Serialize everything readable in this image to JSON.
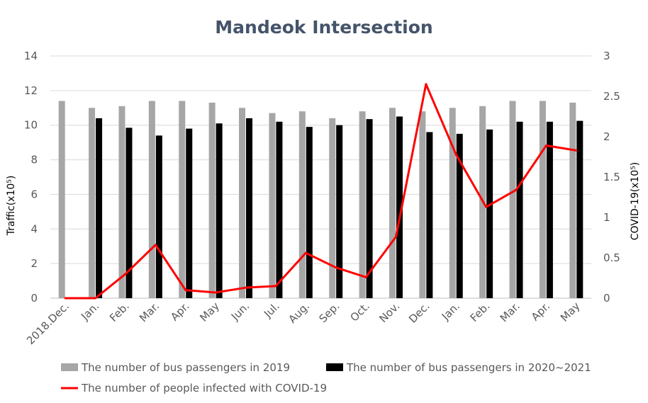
{
  "chart_data": {
    "type": "bar",
    "title": "Mandeok Intersection",
    "categories": [
      "2018.Dec.",
      "Jan.",
      "Feb.",
      "Mar.",
      "Apr.",
      "May",
      "Jun.",
      "Jul.",
      "Aug.",
      "Sep.",
      "Oct.",
      "Nov.",
      "Dec.",
      "Jan.",
      "Feb.",
      "Mar.",
      "Apr.",
      "May"
    ],
    "ylabel": "Traffic(x10⁵)",
    "y2label": "COVID-19(x10⁵)",
    "ylim": [
      0,
      14
    ],
    "y2lim": [
      0,
      3
    ],
    "yticks": [
      0,
      2,
      4,
      6,
      8,
      10,
      12,
      14
    ],
    "y2ticks": [
      0,
      0.5,
      1,
      1.5,
      2,
      2.5,
      3
    ],
    "ytick_labels": [
      "0",
      "2",
      "4",
      "6",
      "8",
      "10",
      "12",
      "14"
    ],
    "y2tick_labels": [
      "0",
      "0.5",
      "1",
      "1.5",
      "2",
      "2.5",
      "3"
    ],
    "grid": "horizontal",
    "legend_position": "bottom",
    "series": [
      {
        "name": "The number of bus passengers in 2019",
        "type": "bar",
        "axis": "left",
        "color": "#a6a6a6",
        "values": [
          11.4,
          11.0,
          11.1,
          11.4,
          11.4,
          11.3,
          11.0,
          10.7,
          10.8,
          10.4,
          10.8,
          11.0,
          10.8,
          11.0,
          11.1,
          11.4,
          11.4,
          11.3
        ]
      },
      {
        "name": "The number of bus passengers in 2020~2021",
        "type": "bar",
        "axis": "left",
        "color": "#000000",
        "values": [
          null,
          10.4,
          9.85,
          9.4,
          9.8,
          10.1,
          10.4,
          10.2,
          9.9,
          10.0,
          10.35,
          10.5,
          9.6,
          9.5,
          9.75,
          10.2,
          10.2,
          10.25
        ]
      },
      {
        "name": "The number of people infected with COVID-19",
        "type": "line",
        "axis": "right",
        "color": "#ff0000",
        "values": [
          0,
          0,
          0.3,
          0.66,
          0.1,
          0.07,
          0.13,
          0.15,
          0.56,
          0.38,
          0.26,
          0.76,
          2.65,
          1.78,
          1.13,
          1.34,
          1.89,
          1.83
        ]
      }
    ]
  }
}
